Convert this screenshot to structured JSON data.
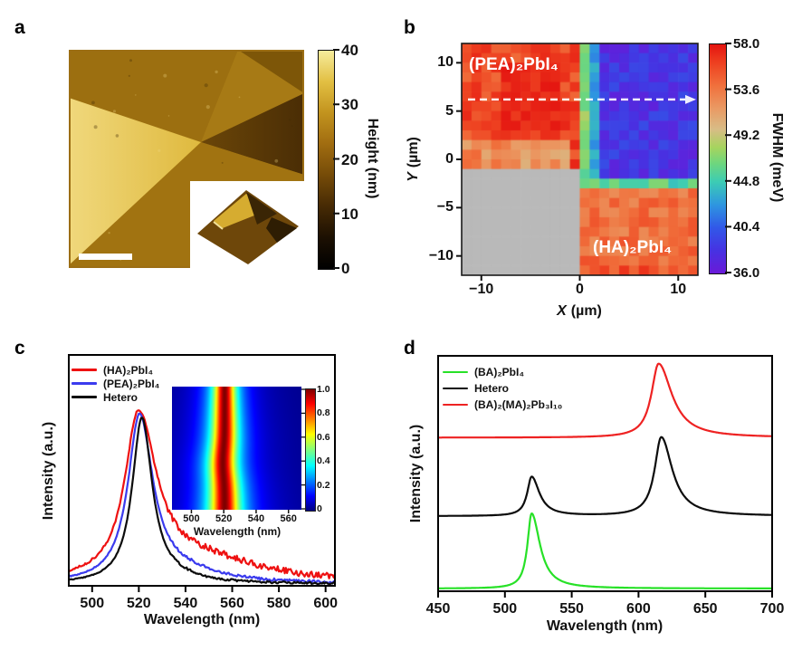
{
  "panel_labels": {
    "a": "a",
    "b": "b",
    "c": "c",
    "d": "d"
  },
  "chart_data": [
    {
      "id": "a",
      "type": "heatmap",
      "kind": "afm-topography-image",
      "colorbar": {
        "label": "Height (nm)",
        "range": [
          0,
          40
        ],
        "ticks": [
          "40",
          "30",
          "20",
          "10",
          "0"
        ],
        "gradient": [
          "#000000",
          "#1c1002",
          "#462a04",
          "#754b08",
          "#a06c10",
          "#c2931e",
          "#e2bf42",
          "#f6ec9c"
        ]
      },
      "scalebar": {
        "shown": true,
        "color": "#ffffff"
      },
      "regions": [
        {
          "name": "background",
          "color": "#a77a15"
        },
        {
          "name": "upper-left-terrace",
          "color": "#9c6f10"
        },
        {
          "name": "upper-right-terrace",
          "color": "#7d5608"
        },
        {
          "name": "right-dark-flake",
          "color": "#6b4608",
          "color2": "#4a2d05"
        },
        {
          "name": "left-bright-flake",
          "color": "#dfb93e",
          "color2": "#f0d87c"
        },
        {
          "name": "lower-terrace",
          "color": "#a17311"
        }
      ],
      "inset": {
        "type": "3d-render",
        "colors": {
          "bg": "#ffffff",
          "base": "#6e470a",
          "top_face": "#d6ac30",
          "dark_face": "#3a2505",
          "shadow": "#2e1d03"
        }
      }
    },
    {
      "id": "b",
      "type": "heatmap",
      "xlabel": {
        "var": "X",
        "unit": "(µm)"
      },
      "ylabel": {
        "var": "Y",
        "unit": "(µm)"
      },
      "xlim": [
        -12,
        12
      ],
      "ylim": [
        -12,
        12
      ],
      "xticks": [
        {
          "value": -10,
          "label": "−10"
        },
        {
          "value": 0,
          "label": "0"
        },
        {
          "value": 10,
          "label": "10"
        }
      ],
      "yticks": [
        {
          "value": 10,
          "label": "10"
        },
        {
          "value": 5,
          "label": "5"
        },
        {
          "value": 0,
          "label": "0"
        },
        {
          "value": -5,
          "label": "−5"
        },
        {
          "value": -10,
          "label": "−10"
        }
      ],
      "grid": {
        "cols": 24,
        "rows": 24
      },
      "colorbar": {
        "label": "FWHM (meV)",
        "range": [
          36,
          58
        ],
        "ticks": [
          "58.0",
          "53.6",
          "49.2",
          "44.8",
          "40.4",
          "36.0"
        ],
        "colormap": [
          [
            0,
            "#6a1ad8"
          ],
          [
            0.1,
            "#4632e2"
          ],
          [
            0.2,
            "#3158e8"
          ],
          [
            0.3,
            "#2e96e0"
          ],
          [
            0.4,
            "#3cccb4"
          ],
          [
            0.48,
            "#6ed67e"
          ],
          [
            0.55,
            "#a6d45e"
          ],
          [
            0.63,
            "#d8bc86"
          ],
          [
            0.72,
            "#ea9a64"
          ],
          [
            0.82,
            "#f0703c"
          ],
          [
            0.92,
            "#ee4020"
          ],
          [
            1,
            "#e41410"
          ]
        ]
      },
      "regions": {
        "pea": {
          "label": "(PEA)₂PbI₄",
          "area": "x<0, y>0",
          "mean_meV": 55.8,
          "spread": 1.5
        },
        "pea_hotspot": {
          "mean_meV": 57.2,
          "spread": 0.7
        },
        "pea_lower_edge": {
          "mean_meV": 52.5,
          "spread": 2.0
        },
        "hetero_col": {
          "mean_meV": 47.4,
          "spread": 1.1
        },
        "hetero_row": {
          "mean_meV": 45.6,
          "spread": 1.6
        },
        "blue_fringe_col": {
          "mean_meV": 43.0,
          "spread": 1.2
        },
        "overlap_blue": {
          "area": "x>0, y>0",
          "mean_meV": 38.2,
          "spread": 1.5
        },
        "ha": {
          "label": "(HA)₂PbI₄",
          "area": "x>0, y<0",
          "mean_meV": 54.0,
          "spread": 1.5
        },
        "masked": {
          "color": "#b9b9b9",
          "area": "x<0, y<0"
        }
      },
      "annotations": {
        "pea_label": "(PEA)₂PbI₄",
        "ha_label": "(HA)₂PbI₄",
        "scan_arrow_y_um": 6.2
      }
    },
    {
      "id": "c",
      "type": "line",
      "xlabel": "Wavelength (nm)",
      "ylabel": "Intensity (a.u.)",
      "xlim": [
        490,
        604
      ],
      "ylim": [
        0,
        1.3
      ],
      "xticks": [
        "500",
        "520",
        "540",
        "560",
        "580",
        "600"
      ],
      "series": [
        {
          "name": "(HA)₂PbI₄",
          "color": "#ee1111",
          "baseline": 0.015,
          "peaks": [
            {
              "center": 519.8,
              "hwhm_left": 7.0,
              "hwhm_right": 9.5,
              "amp": 0.915
            }
          ],
          "tail": {
            "center": 548,
            "hwhm": 30,
            "amp": 0.115
          },
          "noise": 0.012
        },
        {
          "name": "(PEA)₂PbI₄",
          "color": "#3b3bee",
          "baseline": 0.012,
          "peaks": [
            {
              "center": 520.3,
              "hwhm_left": 6.0,
              "hwhm_right": 7.0,
              "amp": 0.935
            }
          ],
          "tail": {
            "center": 540,
            "hwhm": 18,
            "amp": 0.05
          },
          "noise": 0.005
        },
        {
          "name": "Hetero",
          "color": "#0c0c0c",
          "baseline": 0.01,
          "peaks": [
            {
              "center": 521.3,
              "hwhm_left": 5.0,
              "hwhm_right": 5.4,
              "amp": 0.93
            }
          ],
          "tail": {
            "center": 536,
            "hwhm": 12,
            "amp": 0.022
          },
          "noise": 0.004
        }
      ],
      "legend": {
        "position": "top-left"
      },
      "inset": {
        "type": "heatmap",
        "xlabel": "Wavelength (nm)",
        "xlim": [
          488,
          568
        ],
        "xticks": [
          "500",
          "520",
          "540",
          "560"
        ],
        "colorbar": {
          "range": [
            0,
            1
          ],
          "ticks": [
            "1.0",
            "0.8",
            "0.6",
            "0.4",
            "0.2",
            "0"
          ],
          "colormap": "jet"
        },
        "band": {
          "center_nm": 520.5,
          "hwhm_top_nm": 6.5,
          "hwhm_bottom_nm": 9.0
        }
      }
    },
    {
      "id": "d",
      "type": "line",
      "xlabel": "Wavelength (nm)",
      "ylabel": "Intensity (a.u.)",
      "xlim": [
        450,
        700
      ],
      "ylim": [
        0,
        1.05
      ],
      "xticks": [
        "450",
        "500",
        "550",
        "600",
        "650",
        "700"
      ],
      "series": [
        {
          "name": "(BA)₂PbI₄",
          "color": "#27e127",
          "baseline": 0.012,
          "peaks": [
            {
              "center": 520,
              "hwhm_left": 3.8,
              "hwhm_right": 7.5,
              "amp": 0.335
            }
          ]
        },
        {
          "name": "Hetero",
          "color": "#0c0c0c",
          "baseline": 0.335,
          "peaks": [
            {
              "center": 520,
              "hwhm_left": 4.0,
              "hwhm_right": 7.0,
              "amp": 0.175
            },
            {
              "center": 617,
              "hwhm_left": 6.0,
              "hwhm_right": 10.0,
              "amp": 0.352
            }
          ]
        },
        {
          "name": "(BA)₂(MA)₂Pb₃I₁₀",
          "color": "#ee2222",
          "baseline": 0.685,
          "peaks": [
            {
              "center": 615,
              "hwhm_left": 6.5,
              "hwhm_right": 12.0,
              "amp": 0.33
            }
          ]
        }
      ],
      "legend": {
        "position": "top-left"
      }
    }
  ]
}
